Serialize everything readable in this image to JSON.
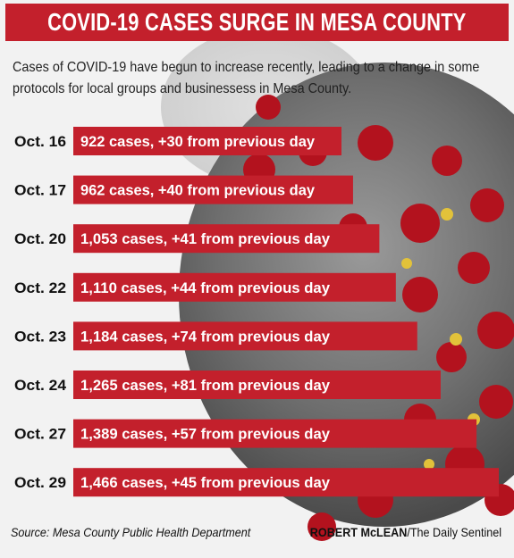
{
  "header": {
    "title": "COVID-19 CASES SURGE IN MESA COUNTY",
    "subtitle": "Cases of COVID-19 have begun to increase recently, leading to a change in some protocols for local groups and businessess in Mesa County."
  },
  "chart_data": {
    "type": "bar",
    "orientation": "horizontal",
    "categories": [
      "Oct. 16",
      "Oct. 17",
      "Oct. 20",
      "Oct. 22",
      "Oct. 23",
      "Oct. 24",
      "Oct. 27",
      "Oct. 29"
    ],
    "values": [
      922,
      962,
      1053,
      1110,
      1184,
      1265,
      1389,
      1466
    ],
    "data_labels": [
      "922 cases, +30 from previous day",
      "962 cases, +40 from previous day",
      "1,053 cases, +41 from previous day",
      "1,110 cases, +44 from previous day",
      "1,184 cases, +74 from previous day",
      "1,265 cases, +81 from previous day",
      "1,389 cases, +57 from previous day",
      "1,466 cases, +45 from previous day"
    ],
    "bar_color": "#c3202c",
    "label_color": "#ffffff"
  },
  "footer": {
    "source": "Source: Mesa County Public Health Department",
    "credit_name": "ROBERT McLEAN",
    "credit_outlet": "/The Daily Sentinel"
  },
  "colors": {
    "accent": "#c3202c",
    "background": "#f2f2f2",
    "text": "#111111"
  }
}
